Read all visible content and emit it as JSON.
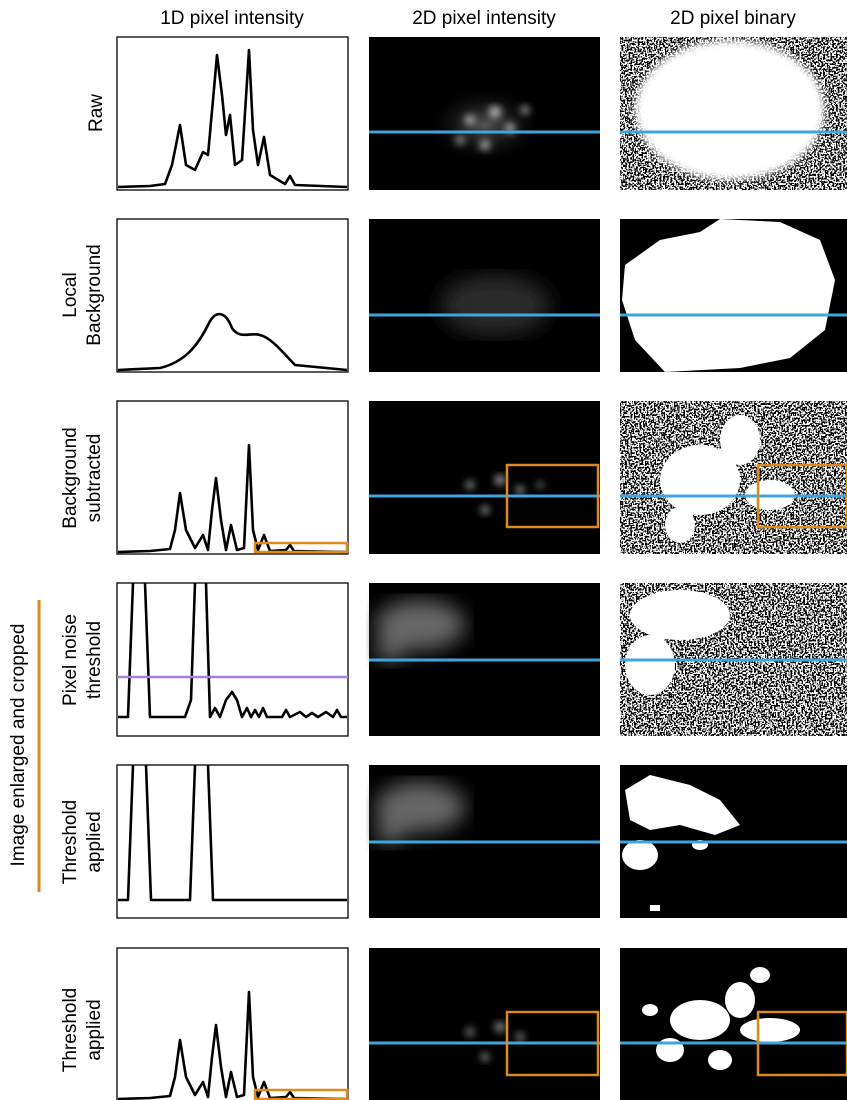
{
  "column_headers": [
    "1D pixel intensity",
    "2D pixel intensity",
    "2D pixel binary"
  ],
  "rows": [
    {
      "lines": [
        "Raw"
      ]
    },
    {
      "lines": [
        "Local",
        "Background"
      ]
    },
    {
      "lines": [
        "Background",
        "subtracted"
      ]
    },
    {
      "lines": [
        "Pixel noise",
        "threshold"
      ]
    },
    {
      "lines": [
        "Threshold",
        "applied"
      ]
    },
    {
      "lines": [
        "Threshold",
        "applied"
      ]
    }
  ],
  "side_label": "Image enlarged and cropped"
}
